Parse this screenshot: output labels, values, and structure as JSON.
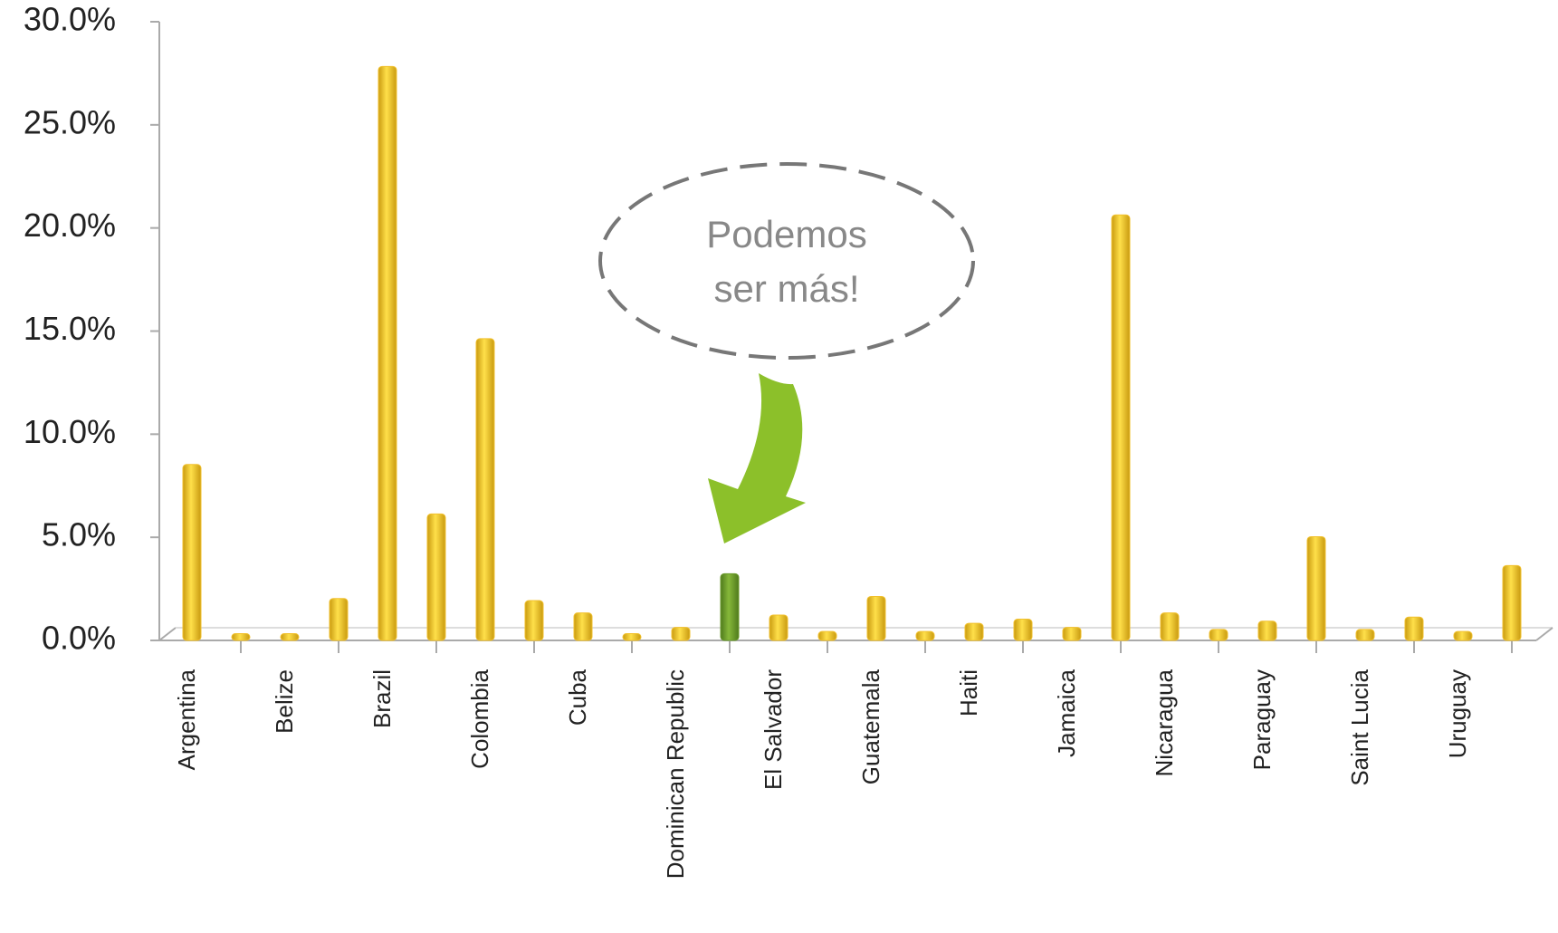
{
  "chart_data": {
    "type": "bar",
    "categories": [
      "Argentina",
      null,
      "Belize",
      null,
      "Brazil",
      null,
      "Colombia",
      null,
      "Cuba",
      null,
      "Dominican Republic",
      null,
      "El Salvador",
      null,
      "Guatemala",
      null,
      "Haiti",
      null,
      "Jamaica",
      null,
      "Nicaragua",
      null,
      "Paraguay",
      null,
      "Saint Lucia",
      null,
      "Uruguay",
      null
    ],
    "values": [
      8.4,
      0.2,
      0.2,
      1.9,
      27.7,
      6.0,
      14.5,
      1.8,
      1.2,
      0.2,
      0.5,
      3.1,
      1.1,
      0.3,
      2.0,
      0.3,
      0.7,
      0.9,
      0.5,
      20.5,
      1.2,
      0.4,
      0.8,
      4.9,
      0.4,
      1.0,
      0.3,
      3.5
    ],
    "colors": [
      "#f2c12e",
      "#f2c12e",
      "#f2c12e",
      "#f2c12e",
      "#f2c12e",
      "#f2c12e",
      "#f2c12e",
      "#f2c12e",
      "#f2c12e",
      "#f2c12e",
      "#f2c12e",
      "#6b9b2d",
      "#f2c12e",
      "#f2c12e",
      "#f2c12e",
      "#f2c12e",
      "#f2c12e",
      "#f2c12e",
      "#f2c12e",
      "#f2c12e",
      "#f2c12e",
      "#f2c12e",
      "#f2c12e",
      "#f2c12e",
      "#f2c12e",
      "#f2c12e",
      "#f2c12e",
      "#f2c12e"
    ],
    "ylim": [
      0,
      30
    ],
    "yticks": [
      {
        "value": 0,
        "label": "0.0%"
      },
      {
        "value": 5,
        "label": "5.0%"
      },
      {
        "value": 10,
        "label": "10.0%"
      },
      {
        "value": 15,
        "label": "15.0%"
      },
      {
        "value": 20,
        "label": "20.0%"
      },
      {
        "value": 25,
        "label": "25.0%"
      },
      {
        "value": 30,
        "label": "30.0%"
      }
    ],
    "annotation": [
      "Podemos",
      "ser más!"
    ]
  }
}
